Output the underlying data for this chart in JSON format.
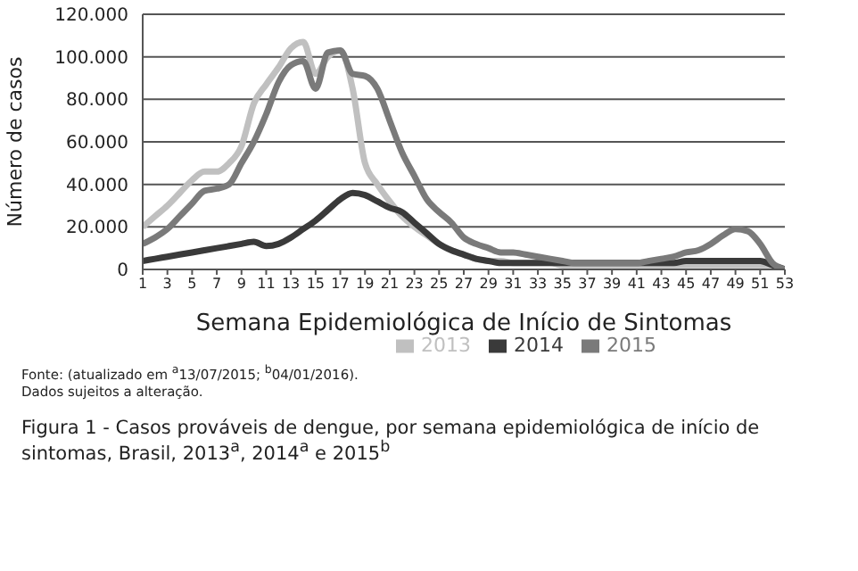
{
  "chart_data": {
    "type": "line",
    "xlabel": "Semana Epidemiológica de Início de Sintomas",
    "ylabel": "Número de casos",
    "x": [
      1,
      2,
      3,
      4,
      5,
      6,
      7,
      8,
      9,
      10,
      11,
      12,
      13,
      14,
      15,
      16,
      17,
      18,
      19,
      20,
      21,
      22,
      23,
      24,
      25,
      26,
      27,
      28,
      29,
      30,
      31,
      32,
      33,
      34,
      35,
      36,
      37,
      38,
      39,
      40,
      41,
      42,
      43,
      44,
      45,
      46,
      47,
      48,
      49,
      50,
      51,
      52,
      53
    ],
    "series": [
      {
        "name": "2013",
        "color": "#c0c0c0",
        "values": [
          20000,
          25000,
          30000,
          36000,
          42000,
          46000,
          46000,
          50000,
          58000,
          78000,
          87000,
          95000,
          104000,
          107000,
          92000,
          100000,
          103000,
          85000,
          50000,
          40000,
          32000,
          25000,
          20000,
          16000,
          12000,
          9000,
          7000,
          5000,
          4000,
          4000,
          3000,
          3000,
          3000,
          3000,
          2000,
          2000,
          2000,
          2000,
          2000,
          2000,
          2000,
          2000,
          2000,
          2000,
          2000,
          2000,
          2000,
          2000,
          2000,
          2000,
          2000,
          2000,
          0
        ]
      },
      {
        "name": "2014",
        "color": "#3a3a3a",
        "values": [
          4000,
          5000,
          6000,
          7000,
          8000,
          9000,
          10000,
          11000,
          12000,
          13000,
          11000,
          12000,
          15000,
          19000,
          23000,
          28000,
          33000,
          36000,
          35000,
          32000,
          29000,
          27000,
          22000,
          17000,
          12000,
          9000,
          7000,
          5000,
          4000,
          3000,
          3000,
          3000,
          3000,
          3000,
          3000,
          3000,
          3000,
          3000,
          3000,
          3000,
          3000,
          3000,
          3000,
          3000,
          4000,
          4000,
          4000,
          4000,
          4000,
          4000,
          4000,
          2000,
          0
        ]
      },
      {
        "name": "2015",
        "color": "#7a7a7a",
        "values": [
          12000,
          15000,
          19000,
          25000,
          31000,
          37000,
          38000,
          40000,
          50000,
          60000,
          73000,
          88000,
          96000,
          98000,
          85000,
          102000,
          103000,
          92000,
          91000,
          85000,
          70000,
          55000,
          44000,
          33000,
          27000,
          22000,
          15000,
          12000,
          10000,
          8000,
          8000,
          7000,
          6000,
          5000,
          4000,
          3000,
          3000,
          3000,
          3000,
          3000,
          3000,
          4000,
          5000,
          6000,
          8000,
          9000,
          12000,
          16000,
          19000,
          18000,
          12000,
          3000,
          0
        ]
      }
    ],
    "xlim": [
      1,
      53
    ],
    "xticks": [
      1,
      3,
      5,
      7,
      9,
      11,
      13,
      15,
      17,
      19,
      21,
      23,
      25,
      27,
      29,
      31,
      33,
      35,
      37,
      39,
      41,
      43,
      45,
      47,
      49,
      51,
      53
    ],
    "ylim": [
      0,
      120000
    ],
    "yticks": [
      {
        "value": 0,
        "label": "0"
      },
      {
        "value": 20000,
        "label": "20.000"
      },
      {
        "value": 40000,
        "label": "40.000"
      },
      {
        "value": 60000,
        "label": "60.000"
      },
      {
        "value": 80000,
        "label": "80.000"
      },
      {
        "value": 100000,
        "label": "100.000"
      },
      {
        "value": 120000,
        "label": "120.000"
      }
    ],
    "grid": "y",
    "legend": "bottom",
    "marker": "none",
    "line_style": "solid",
    "annotations": [
      "Fonte: (atualizado em $^{a}$13/07/2015; $^{b}$04/01/2016).",
      "Dados sujeitos a alteração.",
      "Figura 1 - Casos prováveis de dengue, por semana epidemiológica de início de sintomas, Brasil, 2013$^{a}$, 2014$^{a}$ e 2015$^{b}$"
    ]
  }
}
